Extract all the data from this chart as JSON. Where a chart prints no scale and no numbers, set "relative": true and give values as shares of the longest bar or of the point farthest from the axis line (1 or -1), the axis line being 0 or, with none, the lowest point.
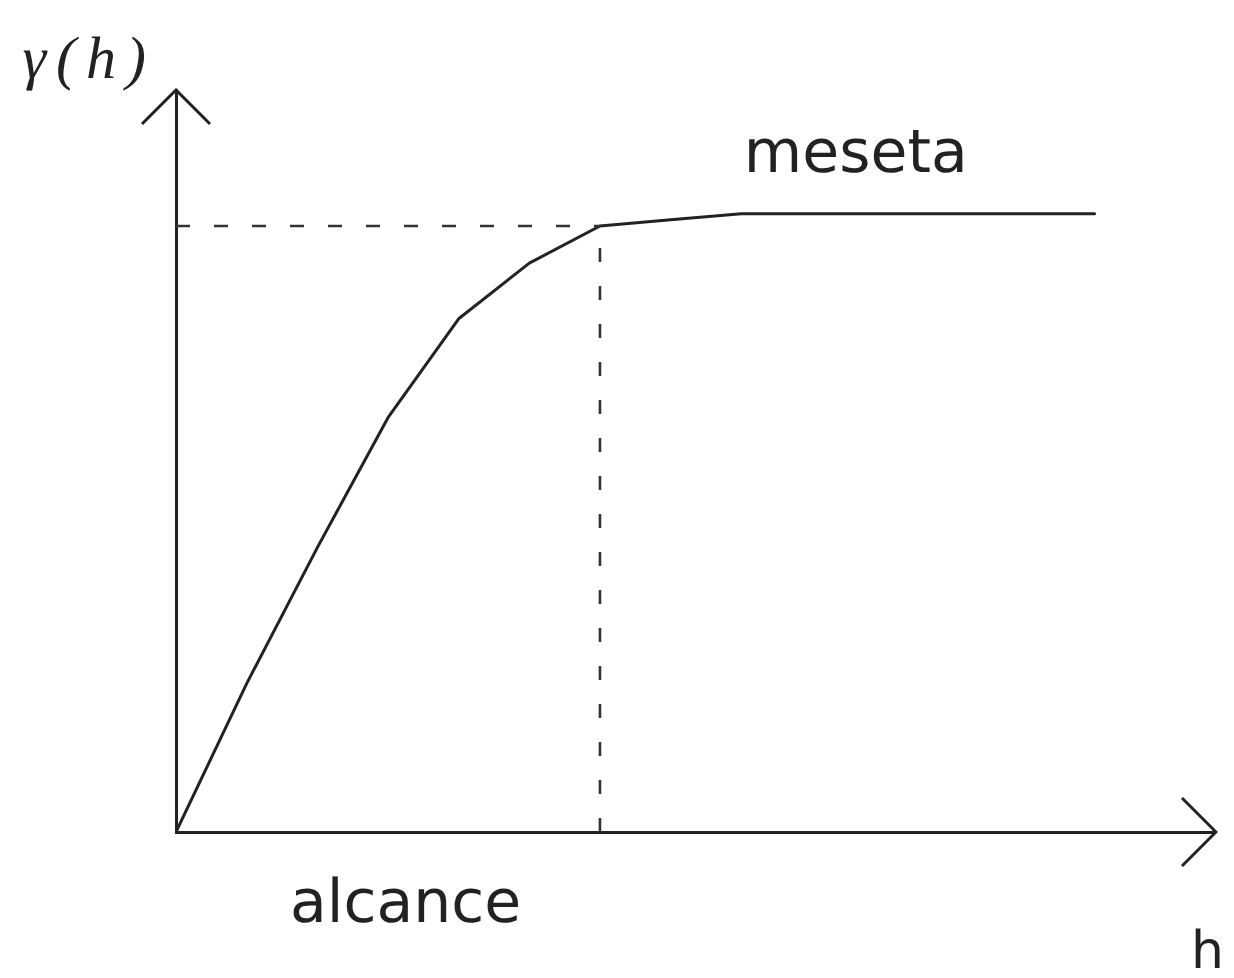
{
  "chart_data": {
    "type": "line",
    "xlabel": "h",
    "ylabel": "γ(h)",
    "categories": [
      null,
      null,
      null,
      null,
      null,
      null,
      null,
      null,
      null,
      null,
      null,
      null,
      null,
      null
    ],
    "series": [
      {
        "color": "#222222",
        "line_style": "solid",
        "values": [
          0,
          0.24,
          0.46,
          0.67,
          0.83,
          0.92,
          0.98,
          0.99,
          1,
          1,
          1,
          1,
          1,
          1
        ]
      }
    ],
    "relative": true,
    "marker": "none",
    "ref_lines": [
      {
        "axis": "y",
        "value": 0.98,
        "color": "#333333",
        "line_style": "dashed"
      }
    ],
    "annotations": [
      "meseta",
      "alcance"
    ]
  }
}
